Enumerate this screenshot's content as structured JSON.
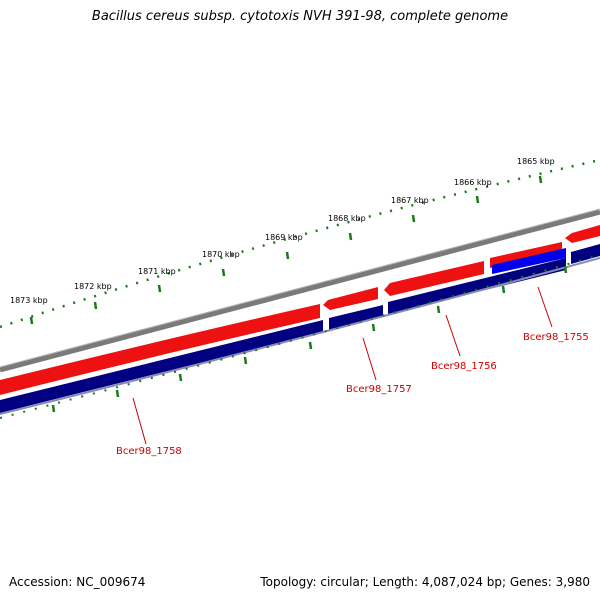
{
  "title": "Bacillus cereus subsp. cytotoxis NVH 391-98, complete genome",
  "accession": "Accession: NC_009674",
  "summary": "Topology: circular; Length: 4,087,024 bp; Genes: 3,980",
  "colors": {
    "backbone": "#777777",
    "forward_strand": "#ee0000",
    "reverse_strand": "#000080",
    "highlight": "#0000ee",
    "tick": "#1a7a1a",
    "label": "#cc0000"
  },
  "ticks": [
    "1873 kbp",
    "1872 kbp",
    "1871 kbp",
    "1870 kbp",
    "1869 kbp",
    "1868 kbp",
    "1867 kbp",
    "1866 kbp",
    "1865 kbp"
  ],
  "genes": [
    "Bcer98_1758",
    "Bcer98_1757",
    "Bcer98_1756",
    "Bcer98_1755"
  ]
}
